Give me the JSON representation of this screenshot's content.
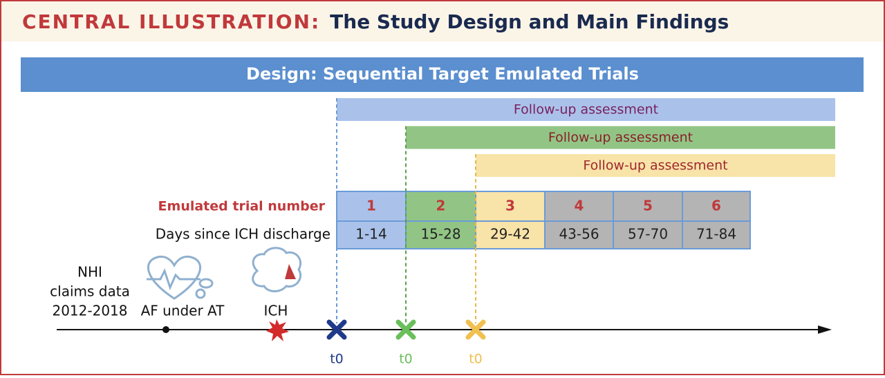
{
  "header": {
    "label": "CENTRAL ILLUSTRATION:",
    "title": "The Study Design and Main Findings"
  },
  "banner": "Design: Sequential Target Emulated Trials",
  "follow_up": [
    "Follow-up assessment",
    "Follow-up assessment",
    "Follow-up assessment"
  ],
  "table": {
    "row_labels": [
      "Emulated trial number",
      "Days since ICH discharge"
    ],
    "trials": [
      "1",
      "2",
      "3",
      "4",
      "5",
      "6"
    ],
    "days": [
      "1-14",
      "15-28",
      "29-42",
      "43-56",
      "57-70",
      "71-84"
    ]
  },
  "timeline": {
    "source": [
      "NHI",
      "claims data",
      "2012-2018"
    ],
    "events": [
      "AF under AT",
      "ICH"
    ],
    "t0": [
      "t0",
      "t0",
      "t0"
    ]
  }
}
